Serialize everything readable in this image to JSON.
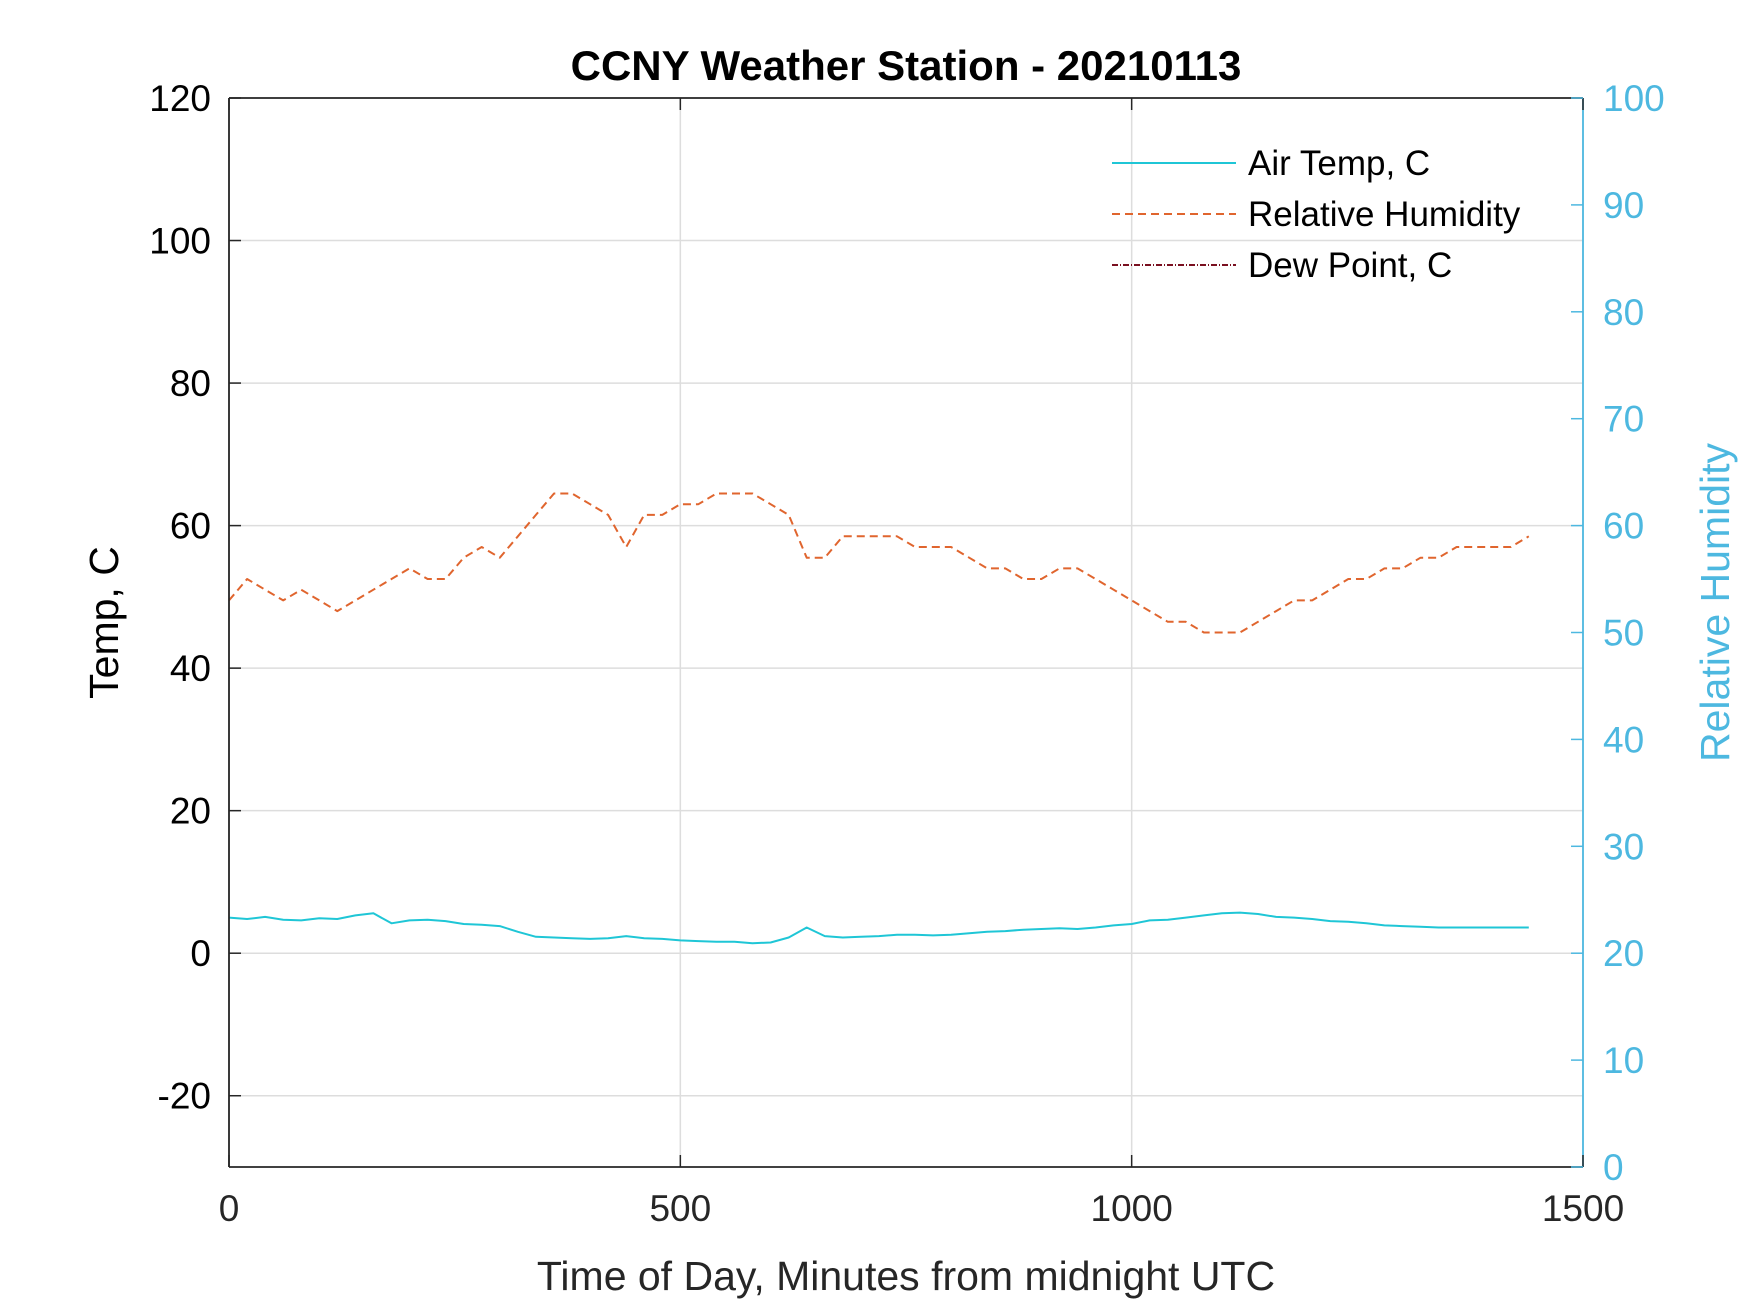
{
  "chart_data": {
    "type": "line",
    "title": "CCNY Weather Station - 20210113",
    "xlabel": "Time of Day, Minutes from midnight UTC",
    "ylabel_left": "Temp, C",
    "ylabel_right": "Relative Humidity",
    "xlim": [
      0,
      1500
    ],
    "ylim_left": [
      -30,
      120
    ],
    "ylim_right": [
      0,
      100
    ],
    "x_ticks": [
      "0",
      "500",
      "1000",
      "1500"
    ],
    "y_left_ticks": [
      "-20",
      "0",
      "20",
      "40",
      "60",
      "80",
      "100",
      "120"
    ],
    "y_right_ticks": [
      "0",
      "10",
      "20",
      "30",
      "40",
      "50",
      "60",
      "70",
      "80",
      "90",
      "100"
    ],
    "grid": true,
    "legend_position": "top-right",
    "colors": {
      "air_temp": "#1fc6d6",
      "relative_humidity": "#e0652e",
      "dew_point": "#7a1020",
      "right_axis": "#4db8e0",
      "grid": "#dddddd",
      "axis": "#262626"
    },
    "series": [
      {
        "name": "Air Temp, C",
        "axis": "left",
        "style": "solid",
        "x": [
          0,
          20,
          40,
          60,
          80,
          100,
          120,
          140,
          160,
          180,
          200,
          220,
          240,
          260,
          280,
          300,
          320,
          340,
          360,
          380,
          400,
          420,
          440,
          460,
          480,
          500,
          520,
          540,
          560,
          580,
          600,
          620,
          640,
          660,
          680,
          700,
          720,
          740,
          760,
          780,
          800,
          820,
          840,
          860,
          880,
          900,
          920,
          940,
          960,
          980,
          1000,
          1020,
          1040,
          1060,
          1080,
          1100,
          1120,
          1140,
          1160,
          1180,
          1200,
          1220,
          1240,
          1260,
          1280,
          1300,
          1320,
          1340,
          1360,
          1380,
          1400,
          1420,
          1440
        ],
        "values": [
          5.0,
          4.8,
          5.1,
          4.7,
          4.6,
          4.9,
          4.8,
          5.3,
          5.6,
          4.2,
          4.6,
          4.7,
          4.5,
          4.1,
          4.0,
          3.8,
          3.0,
          2.3,
          2.2,
          2.1,
          2.0,
          2.1,
          2.4,
          2.1,
          2.0,
          1.8,
          1.7,
          1.6,
          1.6,
          1.4,
          1.5,
          2.2,
          3.6,
          2.4,
          2.2,
          2.3,
          2.4,
          2.6,
          2.6,
          2.5,
          2.6,
          2.8,
          3.0,
          3.1,
          3.3,
          3.4,
          3.5,
          3.4,
          3.6,
          3.9,
          4.1,
          4.6,
          4.7,
          5.0,
          5.3,
          5.6,
          5.7,
          5.5,
          5.1,
          5.0,
          4.8,
          4.5,
          4.4,
          4.2,
          3.9,
          3.8,
          3.7,
          3.6,
          3.6,
          3.6,
          3.6,
          3.6,
          3.6
        ]
      },
      {
        "name": "Relative Humidity",
        "axis": "right",
        "style": "dashed",
        "x": [
          0,
          20,
          40,
          60,
          80,
          100,
          120,
          140,
          160,
          180,
          200,
          220,
          240,
          260,
          280,
          300,
          320,
          340,
          360,
          380,
          400,
          420,
          440,
          460,
          480,
          500,
          520,
          540,
          560,
          580,
          600,
          620,
          640,
          660,
          680,
          700,
          720,
          740,
          760,
          780,
          800,
          820,
          840,
          860,
          880,
          900,
          920,
          940,
          960,
          980,
          1000,
          1020,
          1040,
          1060,
          1080,
          1100,
          1120,
          1140,
          1160,
          1180,
          1200,
          1220,
          1240,
          1260,
          1280,
          1300,
          1320,
          1340,
          1360,
          1380,
          1400,
          1420,
          1440
        ],
        "values": [
          53,
          55,
          54,
          53,
          54,
          53,
          52,
          53,
          54,
          55,
          56,
          55,
          55,
          57,
          58,
          57,
          59,
          61,
          63,
          63,
          62,
          61,
          58,
          61,
          61,
          62,
          62,
          63,
          63,
          63,
          62,
          61,
          57,
          57,
          59,
          59,
          59,
          59,
          58,
          58,
          58,
          57,
          56,
          56,
          55,
          55,
          56,
          56,
          55,
          54,
          53,
          52,
          51,
          51,
          50,
          50,
          50,
          51,
          52,
          53,
          53,
          54,
          55,
          55,
          56,
          56,
          57,
          57,
          58,
          58,
          58,
          58,
          59
        ]
      },
      {
        "name": "Dew Point, C",
        "axis": "left",
        "style": "dashdot",
        "x": [],
        "values": []
      }
    ]
  }
}
